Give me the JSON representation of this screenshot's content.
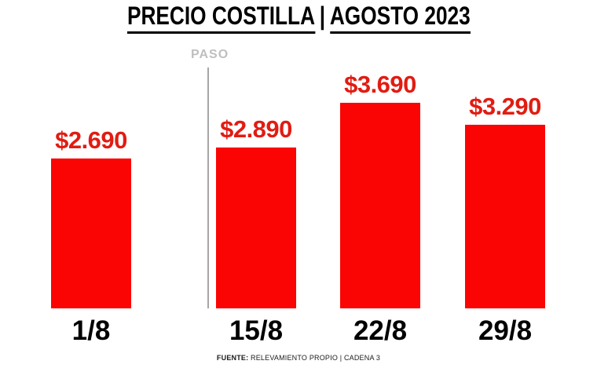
{
  "title": {
    "part1": "PRECIO COSTILLA",
    "separator": "|",
    "part2": "AGOSTO 2023"
  },
  "annotation": {
    "label": "PASO"
  },
  "footer": {
    "source_bold": "FUENTE:",
    "source_text": " RELEVAMIENTO PROPIO | CADENA 3"
  },
  "colors": {
    "bar_red": "#fb0404",
    "value_label_red": "#e11c12",
    "title_black": "#000000",
    "annotation_gray": "#bfbfbf",
    "annotation_line_gray": "#a6a6a6"
  },
  "chart_data": {
    "type": "bar",
    "title": "PRECIO COSTILLA | AGOSTO 2023",
    "categories": [
      "1/8",
      "15/8",
      "22/8",
      "29/8"
    ],
    "values": [
      2690,
      2890,
      3690,
      3290
    ],
    "value_labels": [
      "$2.690",
      "$2.890",
      "$3.690",
      "$3.290"
    ],
    "xlabel": "",
    "ylabel": "",
    "ylim": [
      0,
      4300
    ],
    "grid": false,
    "legend": false,
    "annotations": [
      {
        "text": "PASO",
        "position": "vertical line between 1/8 and 15/8"
      }
    ],
    "source": "FUENTE: RELEVAMIENTO PROPIO | CADENA 3"
  }
}
